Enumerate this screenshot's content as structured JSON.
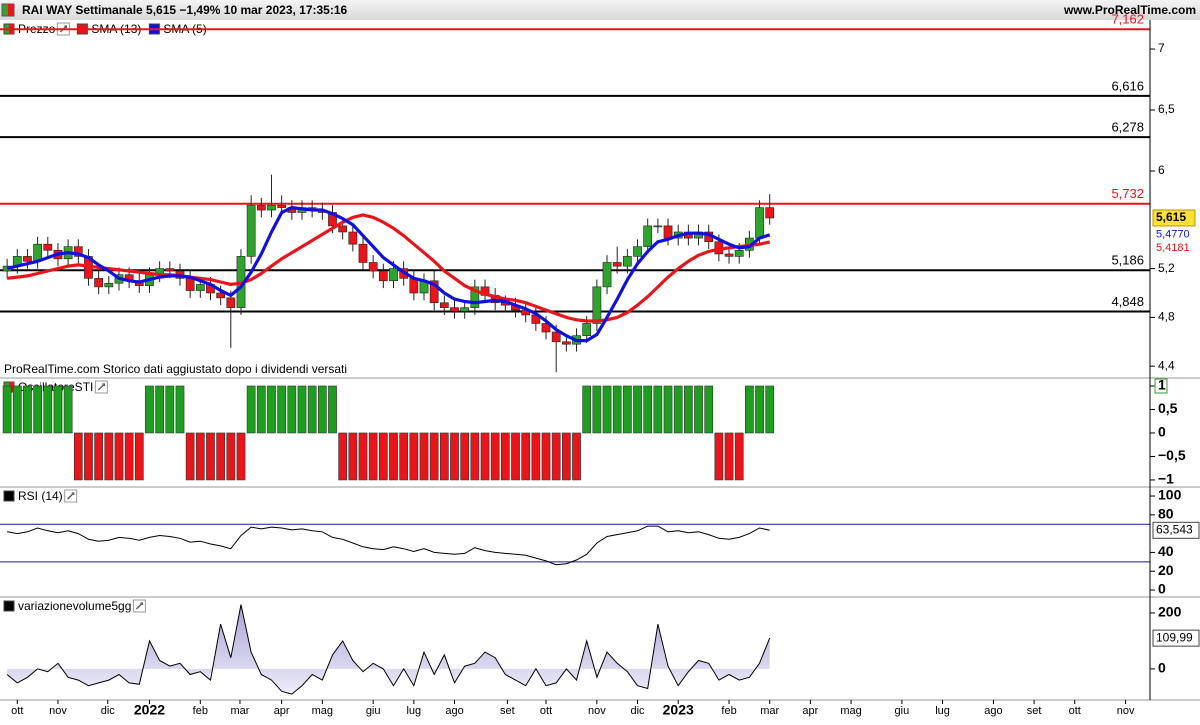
{
  "header": {
    "title": "RAI WAY Settimanale 5,615 −1,49% 10 mar 2023, 17:35:16",
    "source": "www.ProRealTime.com"
  },
  "chart_data": [
    {
      "type": "candlestick",
      "legend": "Prezzo",
      "note": "ProRealTime.com Storico dati aggiustato dopo i dividendi versati",
      "colors": {
        "up": "#2ea32e",
        "down": "#e8151b"
      },
      "ylim": [
        4.303,
        7.238
      ],
      "yticks": [
        7,
        {
          "value": 6.5,
          "label": "6,5"
        },
        6,
        {
          "value": 5.2,
          "label": "5,2"
        },
        {
          "value": 4.8,
          "label": "4,8"
        },
        {
          "value": 4.4,
          "label": "4,4"
        }
      ],
      "levels": [
        {
          "value": 7.162,
          "label": "7,162",
          "color": "#e8151b"
        },
        {
          "value": 6.616,
          "label": "6,616",
          "color": "#000000"
        },
        {
          "value": 6.278,
          "label": "6,278",
          "color": "#000000"
        },
        {
          "value": 5.732,
          "label": "5,732",
          "color": "#e8151b"
        },
        {
          "value": 5.186,
          "label": "5,186",
          "color": "#000000"
        },
        {
          "value": 4.848,
          "label": "4,848",
          "color": "#000000"
        }
      ],
      "open": [
        5.18,
        5.22,
        5.3,
        5.26,
        5.4,
        5.35,
        5.28,
        5.38,
        5.3,
        5.12,
        5.05,
        5.08,
        5.15,
        5.1,
        5.06,
        5.15,
        5.2,
        5.18,
        5.12,
        5.02,
        5.07,
        5.0,
        4.96,
        4.88,
        5.3,
        5.72,
        5.68,
        5.72,
        5.7,
        5.66,
        5.7,
        5.68,
        5.66,
        5.55,
        5.5,
        5.4,
        5.25,
        5.18,
        5.1,
        5.2,
        5.12,
        5.0,
        5.1,
        4.92,
        4.88,
        4.85,
        4.88,
        5.05,
        4.98,
        4.92,
        4.9,
        4.86,
        4.82,
        4.75,
        4.68,
        4.6,
        4.58,
        4.65,
        4.75,
        5.05,
        5.25,
        5.22,
        5.3,
        5.38,
        5.55,
        5.55,
        5.45,
        5.5,
        5.45,
        5.5,
        5.42,
        5.32,
        5.3,
        5.35,
        5.45,
        5.7
      ],
      "high": [
        5.28,
        5.36,
        5.36,
        5.46,
        5.46,
        5.41,
        5.44,
        5.44,
        5.36,
        5.18,
        5.14,
        5.21,
        5.21,
        5.16,
        5.21,
        5.26,
        5.26,
        5.24,
        5.18,
        5.13,
        5.13,
        5.06,
        5.02,
        5.36,
        5.8,
        5.78,
        5.97,
        5.8,
        5.76,
        5.76,
        5.76,
        5.74,
        5.72,
        5.61,
        5.56,
        5.46,
        5.31,
        5.24,
        5.26,
        5.26,
        5.18,
        5.16,
        5.18,
        4.98,
        4.94,
        4.94,
        5.11,
        5.11,
        5.04,
        4.98,
        4.96,
        4.92,
        4.88,
        4.81,
        4.74,
        4.66,
        4.71,
        4.81,
        5.11,
        5.31,
        5.38,
        5.36,
        5.44,
        5.61,
        5.61,
        5.61,
        5.56,
        5.56,
        5.56,
        5.56,
        5.48,
        5.38,
        5.41,
        5.51,
        5.76,
        5.81
      ],
      "low": [
        5.12,
        5.16,
        5.2,
        5.2,
        5.29,
        5.22,
        5.22,
        5.24,
        5.06,
        4.99,
        4.99,
        5.02,
        5.04,
        5.0,
        5.0,
        5.09,
        5.12,
        5.06,
        4.96,
        4.96,
        4.94,
        4.9,
        4.55,
        4.82,
        5.24,
        5.62,
        5.62,
        5.64,
        5.6,
        5.6,
        5.62,
        5.6,
        5.49,
        5.44,
        5.34,
        5.19,
        5.12,
        5.04,
        5.04,
        5.06,
        4.94,
        4.94,
        4.86,
        4.82,
        4.79,
        4.79,
        4.82,
        4.92,
        4.86,
        4.84,
        4.8,
        4.76,
        4.69,
        4.62,
        4.35,
        4.52,
        4.52,
        4.59,
        4.69,
        4.99,
        5.16,
        5.16,
        5.24,
        5.32,
        5.49,
        5.39,
        5.39,
        5.39,
        5.39,
        5.36,
        5.26,
        5.24,
        5.24,
        5.29,
        5.39,
        5.56
      ],
      "close": [
        5.22,
        5.3,
        5.26,
        5.4,
        5.35,
        5.28,
        5.38,
        5.3,
        5.12,
        5.05,
        5.08,
        5.15,
        5.1,
        5.06,
        5.15,
        5.2,
        5.18,
        5.12,
        5.02,
        5.07,
        5.0,
        4.96,
        4.88,
        5.3,
        5.72,
        5.68,
        5.72,
        5.7,
        5.66,
        5.7,
        5.68,
        5.66,
        5.55,
        5.5,
        5.4,
        5.25,
        5.18,
        5.1,
        5.2,
        5.12,
        5.0,
        5.1,
        4.92,
        4.88,
        4.85,
        4.88,
        5.05,
        4.98,
        4.92,
        4.9,
        4.86,
        4.82,
        4.75,
        4.68,
        4.6,
        4.58,
        4.65,
        4.75,
        5.05,
        5.25,
        5.22,
        5.3,
        5.38,
        5.55,
        5.55,
        5.45,
        5.5,
        5.45,
        5.5,
        5.42,
        5.32,
        5.3,
        5.35,
        5.45,
        5.7,
        5.615
      ],
      "last_label": "5,615",
      "series": [
        {
          "name": "SMA (13)",
          "color": "#e8151b",
          "last_label": "5,4181",
          "values": [
            5.12,
            5.13,
            5.14,
            5.16,
            5.18,
            5.2,
            5.22,
            5.23,
            5.22,
            5.21,
            5.2,
            5.19,
            5.18,
            5.17,
            5.16,
            5.15,
            5.15,
            5.14,
            5.13,
            5.12,
            5.11,
            5.09,
            5.07,
            5.08,
            5.11,
            5.16,
            5.22,
            5.28,
            5.33,
            5.38,
            5.43,
            5.48,
            5.53,
            5.58,
            5.62,
            5.64,
            5.62,
            5.58,
            5.53,
            5.47,
            5.4,
            5.33,
            5.26,
            5.18,
            5.12,
            5.06,
            5.02,
            4.99,
            4.97,
            4.95,
            4.94,
            4.92,
            4.89,
            4.86,
            4.83,
            4.8,
            4.78,
            4.77,
            4.77,
            4.78,
            4.8,
            4.84,
            4.9,
            4.97,
            5.05,
            5.13,
            5.2,
            5.26,
            5.31,
            5.34,
            5.36,
            5.37,
            5.38,
            5.39,
            5.4,
            5.4181
          ]
        },
        {
          "name": "SMA (5)",
          "color": "#1010e0",
          "last_label": "5,4770",
          "values": [
            5.2,
            5.22,
            5.24,
            5.26,
            5.29,
            5.32,
            5.33,
            5.32,
            5.29,
            5.23,
            5.18,
            5.12,
            5.1,
            5.09,
            5.11,
            5.13,
            5.14,
            5.14,
            5.13,
            5.1,
            5.07,
            5.02,
            4.98,
            5.05,
            5.17,
            5.32,
            5.5,
            5.66,
            5.7,
            5.69,
            5.68,
            5.68,
            5.65,
            5.61,
            5.56,
            5.47,
            5.38,
            5.29,
            5.23,
            5.17,
            5.12,
            5.1,
            5.07,
            5.0,
            4.95,
            4.93,
            4.92,
            4.93,
            4.94,
            4.93,
            4.9,
            4.87,
            4.83,
            4.77,
            4.7,
            4.65,
            4.61,
            4.61,
            4.66,
            4.8,
            4.95,
            5.11,
            5.24,
            5.34,
            5.42,
            5.44,
            5.47,
            5.49,
            5.49,
            5.48,
            5.44,
            5.4,
            5.37,
            5.38,
            5.45,
            5.477
          ]
        }
      ]
    },
    {
      "type": "signal_bar",
      "legend": "OscillatoreSTI",
      "colors": {
        "up": "#1e9e1e",
        "down": "#e8151b"
      },
      "ylim": [
        -1.15,
        1.17
      ],
      "yticks": [
        1,
        {
          "value": 0.5,
          "label": "0,5"
        },
        0,
        {
          "value": -0.5,
          "label": "−0,5"
        },
        {
          "value": -1,
          "label": "−1"
        }
      ],
      "values": [
        1,
        1,
        1,
        1,
        1,
        1,
        1,
        -1,
        -1,
        -1,
        -1,
        -1,
        -1,
        -1,
        1,
        1,
        1,
        1,
        -1,
        -1,
        -1,
        -1,
        -1,
        -1,
        1,
        1,
        1,
        1,
        1,
        1,
        1,
        1,
        1,
        -1,
        -1,
        -1,
        -1,
        -1,
        -1,
        -1,
        -1,
        -1,
        -1,
        -1,
        -1,
        -1,
        -1,
        -1,
        -1,
        -1,
        -1,
        -1,
        -1,
        -1,
        -1,
        -1,
        -1,
        1,
        1,
        1,
        1,
        1,
        1,
        1,
        1,
        1,
        1,
        1,
        1,
        1,
        -1,
        -1,
        -1,
        1,
        1,
        1
      ]
    },
    {
      "type": "line",
      "legend": "RSI (14)",
      "color": "#000000",
      "bands": [
        70,
        30
      ],
      "band_color": "#1a1aa0",
      "ylim": [
        -7.4,
        109.6
      ],
      "yticks": [
        100,
        80,
        40,
        20,
        0
      ],
      "last_label": "63,543",
      "values": [
        62,
        60,
        62,
        66,
        63,
        61,
        63,
        60,
        54,
        52,
        53,
        56,
        55,
        53,
        56,
        58,
        57,
        55,
        51,
        52,
        49,
        47,
        44,
        58,
        67,
        65,
        67,
        66,
        64,
        65,
        63,
        62,
        56,
        54,
        50,
        46,
        44,
        43,
        46,
        44,
        41,
        44,
        40,
        39,
        38,
        39,
        45,
        42,
        40,
        39,
        38,
        37,
        34,
        31,
        27,
        28,
        32,
        38,
        50,
        57,
        59,
        61,
        63,
        68,
        68,
        62,
        63,
        61,
        62,
        59,
        55,
        54,
        56,
        60,
        66,
        63.543
      ]
    },
    {
      "type": "area",
      "legend": "variazionevolume5gg",
      "color": "#000000",
      "fill": "#c9c6e6",
      "ylim": [
        -111,
        257
      ],
      "yticks": [
        200,
        0
      ],
      "last_label": "109,99",
      "values": [
        -20,
        -50,
        -30,
        0,
        -10,
        20,
        -30,
        -40,
        -60,
        -50,
        -40,
        -20,
        -50,
        -55,
        100,
        30,
        10,
        20,
        -20,
        -10,
        -40,
        160,
        40,
        230,
        60,
        -20,
        -40,
        -80,
        -90,
        -60,
        -20,
        -40,
        50,
        100,
        30,
        -10,
        20,
        0,
        -60,
        0,
        -60,
        60,
        -20,
        50,
        -50,
        10,
        20,
        60,
        40,
        -20,
        -40,
        -60,
        0,
        -60,
        -50,
        0,
        -40,
        100,
        -30,
        60,
        20,
        -10,
        -60,
        -70,
        160,
        10,
        -60,
        -10,
        30,
        20,
        -40,
        -20,
        -40,
        -30,
        20,
        109.99
      ],
      "xlim": [
        -0.7,
        112.4
      ],
      "xticks": [
        {
          "value": 1,
          "label": "ott"
        },
        {
          "value": 5,
          "label": "nov"
        },
        {
          "value": 9.9,
          "label": "dic"
        },
        {
          "value": 14,
          "label": "2022"
        },
        {
          "value": 19,
          "label": "feb"
        },
        {
          "value": 22.9,
          "label": "mar"
        },
        {
          "value": 27,
          "label": "apr"
        },
        {
          "value": 31,
          "label": "mag"
        },
        {
          "value": 36,
          "label": "giu"
        },
        {
          "value": 40,
          "label": "lug"
        },
        {
          "value": 44,
          "label": "ago"
        },
        {
          "value": 49.2,
          "label": "set"
        },
        {
          "value": 53,
          "label": "ott"
        },
        {
          "value": 58,
          "label": "nov"
        },
        {
          "value": 62,
          "label": "dic"
        },
        {
          "value": 66,
          "label": "2023"
        },
        {
          "value": 71,
          "label": "feb"
        },
        {
          "value": 75,
          "label": "mar"
        },
        {
          "value": 79,
          "label": "apr"
        },
        {
          "value": 83,
          "label": "mag"
        },
        {
          "value": 88,
          "label": "giu"
        },
        {
          "value": 92,
          "label": "lug"
        },
        {
          "value": 97,
          "label": "ago"
        },
        {
          "value": 101,
          "label": "set"
        },
        {
          "value": 105,
          "label": "ott"
        },
        {
          "value": 110,
          "label": "nov"
        }
      ]
    }
  ]
}
